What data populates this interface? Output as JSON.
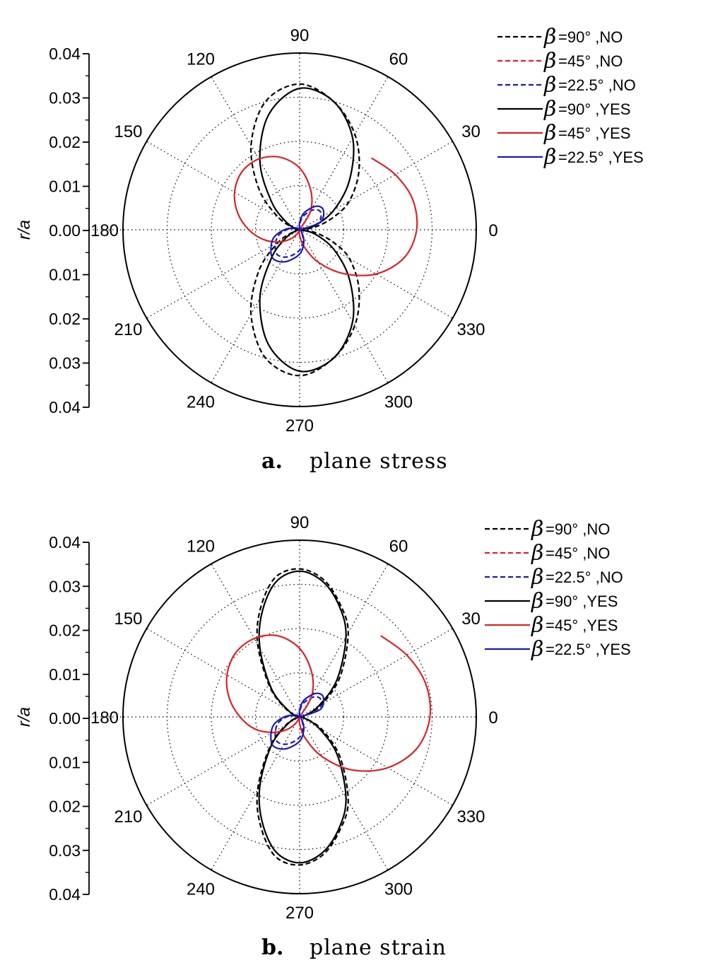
{
  "chart_data": [
    {
      "type": "polar-line",
      "caption_letter": "a.",
      "caption_text": "plane stress",
      "ylabel": "r/a",
      "rlim": [
        0,
        0.04
      ],
      "radial_ticks": [
        "0.04",
        "0.03",
        "0.02",
        "0.01",
        "0.00",
        "0.01",
        "0.02",
        "0.03",
        "0.04"
      ],
      "angle_ticks": [
        "0",
        "30",
        "60",
        "90",
        "120",
        "150",
        "180",
        "210",
        "240",
        "270",
        "300",
        "330"
      ],
      "grid": true,
      "legend_position": "top-right",
      "series": [
        {
          "beta": "β",
          "name": "=90° ,NO",
          "color": "#000000",
          "dashed": true,
          "points": [
            [
              0,
              0.0
            ],
            [
              10,
              0.0035
            ],
            [
              20,
              0.008
            ],
            [
              30,
              0.013
            ],
            [
              45,
              0.019
            ],
            [
              60,
              0.025
            ],
            [
              75,
              0.03
            ],
            [
              90,
              0.033
            ],
            [
              105,
              0.03
            ],
            [
              120,
              0.022
            ],
            [
              135,
              0.013
            ],
            [
              150,
              0.0055
            ],
            [
              165,
              0.001
            ],
            [
              180,
              0.0
            ],
            [
              195,
              0.001
            ],
            [
              210,
              0.0055
            ],
            [
              225,
              0.013
            ],
            [
              240,
              0.022
            ],
            [
              255,
              0.03
            ],
            [
              270,
              0.033
            ],
            [
              285,
              0.03
            ],
            [
              300,
              0.025
            ],
            [
              315,
              0.019
            ],
            [
              330,
              0.013
            ],
            [
              340,
              0.008
            ],
            [
              350,
              0.0035
            ],
            [
              360,
              0.0
            ]
          ]
        },
        {
          "beta": "β",
          "name": "=45° ,NO",
          "color": "#dd2222",
          "dashed": true,
          "points": [
            [
              0,
              0.0
            ],
            [
              90,
              0.0
            ],
            [
              180,
              0.0
            ],
            [
              270,
              0.0
            ],
            [
              360,
              0.0
            ]
          ]
        },
        {
          "beta": "β",
          "name": "=22.5° ,NO",
          "color": "#1a1ab5",
          "dashed": true,
          "points": [
            [
              0,
              0.0
            ],
            [
              20,
              0.0045
            ],
            [
              40,
              0.0062
            ],
            [
              55,
              0.0055
            ],
            [
              75,
              0.0032
            ],
            [
              90,
              0.0012
            ],
            [
              110,
              0.0
            ],
            [
              150,
              0.0005
            ],
            [
              180,
              0.003
            ],
            [
              200,
              0.0055
            ],
            [
              225,
              0.0075
            ],
            [
              245,
              0.0068
            ],
            [
              270,
              0.0046
            ],
            [
              290,
              0.0022
            ],
            [
              320,
              0.0004
            ],
            [
              360,
              0.0
            ]
          ]
        },
        {
          "beta": "β",
          "name": "=90° ,YES",
          "color": "#000000",
          "dashed": false,
          "points": [
            [
              0,
              0.0
            ],
            [
              15,
              0.0035
            ],
            [
              30,
              0.009
            ],
            [
              45,
              0.016
            ],
            [
              60,
              0.024
            ],
            [
              75,
              0.03
            ],
            [
              90,
              0.032
            ],
            [
              105,
              0.027
            ],
            [
              120,
              0.018
            ],
            [
              135,
              0.009
            ],
            [
              150,
              0.0035
            ],
            [
              165,
              0.0008
            ],
            [
              180,
              0.0
            ],
            [
              195,
              0.0008
            ],
            [
              210,
              0.0035
            ],
            [
              225,
              0.009
            ],
            [
              240,
              0.018
            ],
            [
              255,
              0.027
            ],
            [
              270,
              0.032
            ],
            [
              285,
              0.03
            ],
            [
              300,
              0.024
            ],
            [
              315,
              0.016
            ],
            [
              330,
              0.009
            ],
            [
              345,
              0.0035
            ],
            [
              360,
              0.0
            ]
          ]
        },
        {
          "beta": "β",
          "name": "=45° ,YES",
          "color": "#dd2222",
          "dashed": false,
          "points": [
            [
              45,
              0.0
            ],
            [
              60,
              0.005
            ],
            [
              75,
              0.0095
            ],
            [
              90,
              0.014
            ],
            [
              105,
              0.017
            ],
            [
              120,
              0.0185
            ],
            [
              135,
              0.0185
            ],
            [
              150,
              0.017
            ],
            [
              165,
              0.0145
            ],
            [
              180,
              0.0115
            ],
            [
              195,
              0.0085
            ],
            [
              210,
              0.0055
            ],
            [
              225,
              0.003
            ],
            [
              240,
              0.001
            ],
            [
              255,
              0.0
            ],
            [
              270,
              0.0012
            ],
            [
              285,
              0.004
            ],
            [
              300,
              0.0085
            ],
            [
              315,
              0.014
            ],
            [
              330,
              0.02
            ],
            [
              345,
              0.0245
            ],
            [
              360,
              0.0265
            ],
            [
              375,
              0.0265
            ],
            [
              390,
              0.025
            ],
            [
              405,
              0.023
            ]
          ]
        },
        {
          "beta": "β",
          "name": "=22.5° ,YES",
          "color": "#1a1ab5",
          "dashed": false,
          "points": [
            [
              0,
              0.0
            ],
            [
              20,
              0.005
            ],
            [
              40,
              0.007
            ],
            [
              55,
              0.0065
            ],
            [
              75,
              0.004
            ],
            [
              90,
              0.0017
            ],
            [
              110,
              0.0
            ],
            [
              150,
              0.0008
            ],
            [
              180,
              0.0035
            ],
            [
              200,
              0.0065
            ],
            [
              225,
              0.0088
            ],
            [
              245,
              0.008
            ],
            [
              270,
              0.0055
            ],
            [
              290,
              0.0028
            ],
            [
              320,
              0.0005
            ],
            [
              360,
              0.0
            ]
          ]
        }
      ]
    },
    {
      "type": "polar-line",
      "caption_letter": "b.",
      "caption_text": "plane strain",
      "ylabel": "r/a",
      "rlim": [
        0,
        0.04
      ],
      "radial_ticks": [
        "0.04",
        "0.03",
        "0.02",
        "0.01",
        "0.00",
        "0.01",
        "0.02",
        "0.03",
        "0.04"
      ],
      "angle_ticks": [
        "0",
        "30",
        "60",
        "90",
        "120",
        "150",
        "180",
        "210",
        "240",
        "270",
        "300",
        "330"
      ],
      "grid": true,
      "legend_position": "top-right",
      "series": [
        {
          "beta": "β",
          "name": "=90° ,NO",
          "color": "#000000",
          "dashed": true,
          "points": [
            [
              0,
              0.0
            ],
            [
              15,
              0.0015
            ],
            [
              30,
              0.006
            ],
            [
              45,
              0.013
            ],
            [
              60,
              0.022
            ],
            [
              70,
              0.027
            ],
            [
              80,
              0.0315
            ],
            [
              90,
              0.0335
            ],
            [
              100,
              0.032
            ],
            [
              110,
              0.026
            ],
            [
              120,
              0.019
            ],
            [
              135,
              0.0095
            ],
            [
              150,
              0.0035
            ],
            [
              165,
              0.0006
            ],
            [
              180,
              0.0
            ],
            [
              195,
              0.0006
            ],
            [
              210,
              0.0035
            ],
            [
              225,
              0.0095
            ],
            [
              240,
              0.019
            ],
            [
              250,
              0.026
            ],
            [
              260,
              0.032
            ],
            [
              270,
              0.0335
            ],
            [
              280,
              0.0315
            ],
            [
              290,
              0.027
            ],
            [
              300,
              0.022
            ],
            [
              315,
              0.013
            ],
            [
              330,
              0.006
            ],
            [
              345,
              0.0015
            ],
            [
              360,
              0.0
            ]
          ]
        },
        {
          "beta": "β",
          "name": "=45° ,NO",
          "color": "#dd2222",
          "dashed": true,
          "points": [
            [
              0,
              0.0
            ],
            [
              90,
              0.0
            ],
            [
              180,
              0.0
            ],
            [
              270,
              0.0
            ],
            [
              360,
              0.0
            ]
          ]
        },
        {
          "beta": "β",
          "name": "=22.5° ,NO",
          "color": "#1a1ab5",
          "dashed": true,
          "points": [
            [
              0,
              0.0
            ],
            [
              20,
              0.0045
            ],
            [
              40,
              0.0062
            ],
            [
              55,
              0.0055
            ],
            [
              75,
              0.0032
            ],
            [
              90,
              0.0012
            ],
            [
              110,
              0.0
            ],
            [
              150,
              0.0005
            ],
            [
              180,
              0.003
            ],
            [
              200,
              0.0055
            ],
            [
              225,
              0.0075
            ],
            [
              245,
              0.0068
            ],
            [
              270,
              0.0046
            ],
            [
              290,
              0.0022
            ],
            [
              320,
              0.0004
            ],
            [
              360,
              0.0
            ]
          ]
        },
        {
          "beta": "β",
          "name": "=90° ,YES",
          "color": "#000000",
          "dashed": false,
          "points": [
            [
              0,
              0.0
            ],
            [
              15,
              0.0012
            ],
            [
              30,
              0.005
            ],
            [
              45,
              0.012
            ],
            [
              60,
              0.021
            ],
            [
              70,
              0.0265
            ],
            [
              80,
              0.031
            ],
            [
              90,
              0.033
            ],
            [
              100,
              0.031
            ],
            [
              110,
              0.025
            ],
            [
              120,
              0.018
            ],
            [
              135,
              0.009
            ],
            [
              150,
              0.003
            ],
            [
              165,
              0.0005
            ],
            [
              180,
              0.0
            ],
            [
              195,
              0.0005
            ],
            [
              210,
              0.003
            ],
            [
              225,
              0.009
            ],
            [
              240,
              0.018
            ],
            [
              250,
              0.025
            ],
            [
              260,
              0.031
            ],
            [
              270,
              0.033
            ],
            [
              280,
              0.031
            ],
            [
              290,
              0.0265
            ],
            [
              300,
              0.021
            ],
            [
              315,
              0.012
            ],
            [
              330,
              0.005
            ],
            [
              345,
              0.0012
            ],
            [
              360,
              0.0
            ]
          ]
        },
        {
          "beta": "β",
          "name": "=45° ,YES",
          "color": "#dd2222",
          "dashed": false,
          "points": [
            [
              45,
              0.0
            ],
            [
              60,
              0.0055
            ],
            [
              75,
              0.0105
            ],
            [
              90,
              0.0155
            ],
            [
              105,
              0.019
            ],
            [
              120,
              0.0205
            ],
            [
              135,
              0.0205
            ],
            [
              150,
              0.019
            ],
            [
              165,
              0.0165
            ],
            [
              180,
              0.0135
            ],
            [
              195,
              0.0105
            ],
            [
              210,
              0.007
            ],
            [
              225,
              0.004
            ],
            [
              240,
              0.0015
            ],
            [
              255,
              0.0
            ],
            [
              270,
              0.0015
            ],
            [
              285,
              0.005
            ],
            [
              300,
              0.0105
            ],
            [
              315,
              0.017
            ],
            [
              330,
              0.023
            ],
            [
              345,
              0.0275
            ],
            [
              360,
              0.0295
            ],
            [
              375,
              0.0295
            ],
            [
              390,
              0.028
            ],
            [
              405,
              0.026
            ]
          ]
        },
        {
          "beta": "β",
          "name": "=22.5° ,YES",
          "color": "#1a1ab5",
          "dashed": false,
          "points": [
            [
              0,
              0.0
            ],
            [
              20,
              0.005
            ],
            [
              40,
              0.007
            ],
            [
              55,
              0.0065
            ],
            [
              75,
              0.004
            ],
            [
              90,
              0.0017
            ],
            [
              110,
              0.0
            ],
            [
              150,
              0.0008
            ],
            [
              180,
              0.0035
            ],
            [
              200,
              0.0065
            ],
            [
              225,
              0.0088
            ],
            [
              245,
              0.008
            ],
            [
              270,
              0.0055
            ],
            [
              290,
              0.0028
            ],
            [
              320,
              0.0005
            ],
            [
              360,
              0.0
            ]
          ]
        }
      ]
    }
  ]
}
